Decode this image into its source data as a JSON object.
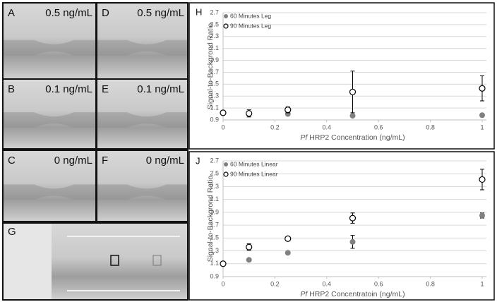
{
  "panels": [
    {
      "letter": "A",
      "caption": "0.5 ng/mL"
    },
    {
      "letter": "D",
      "caption": "0.5 ng/mL"
    },
    {
      "letter": "B",
      "caption": "0.1 ng/mL"
    },
    {
      "letter": "E",
      "caption": "0.1 ng/mL"
    },
    {
      "letter": "C",
      "caption": "0 ng/mL"
    },
    {
      "letter": "F",
      "caption": "0 ng/mL"
    },
    {
      "letter": "G"
    }
  ],
  "chart_data": [
    {
      "type": "scatter",
      "panel": "H",
      "y_label": "Signal-to-Backgrond Ratio",
      "x_label_italic": "Pf",
      "x_label": "HRP2 Concentration (ng/mL)",
      "x": [
        0,
        0.1,
        0.25,
        0.5,
        1
      ],
      "xlim": [
        0,
        1
      ],
      "xticks": [
        0,
        0.2,
        0.4,
        0.6,
        0.8,
        1
      ],
      "ylim": [
        0.9,
        2.7
      ],
      "yticks": [
        0.9,
        1.1,
        1.3,
        1.5,
        1.7,
        1.9,
        2.1,
        2.3,
        2.5,
        2.7
      ],
      "grid": true,
      "legend": "upper left",
      "series": [
        {
          "name": "60 Minutes Leg",
          "color": "#808080",
          "marker": "filled",
          "values": [
            1.02,
            1.0,
            1.0,
            0.97,
            0.98
          ],
          "errors": [
            0.02,
            0.03,
            0.02,
            0.02,
            0.02
          ]
        },
        {
          "name": "90 Minutes Leg",
          "color": "#000000",
          "marker": "open",
          "values": [
            1.02,
            1.01,
            1.07,
            1.37,
            1.43
          ],
          "errors": [
            0.03,
            0.06,
            0.05,
            0.35,
            0.21
          ]
        }
      ]
    },
    {
      "type": "scatter",
      "panel": "J",
      "y_label": "Signal-to-Backgrond Ratio",
      "x_label_italic": "Pf",
      "x_label": "HRP2 Concentratoin (ng/mL)",
      "x": [
        0,
        0.1,
        0.25,
        0.5,
        1
      ],
      "xlim": [
        0,
        1
      ],
      "xticks": [
        0,
        0.2,
        0.4,
        0.6,
        0.8,
        1
      ],
      "ylim": [
        0.9,
        2.7
      ],
      "yticks": [
        0.9,
        1.1,
        1.3,
        1.5,
        1.7,
        1.9,
        2.1,
        2.3,
        2.5,
        2.7
      ],
      "grid": true,
      "legend": "upper left",
      "series": [
        {
          "name": "60 Minutes Linear",
          "color": "#808080",
          "marker": "filled",
          "values": [
            1.1,
            1.16,
            1.27,
            1.44,
            1.85
          ],
          "errors": [
            0.01,
            0.01,
            0.01,
            0.1,
            0.04
          ]
        },
        {
          "name": "90 Minutes Linear",
          "color": "#000000",
          "marker": "open",
          "values": [
            1.1,
            1.36,
            1.49,
            1.81,
            2.41
          ],
          "errors": [
            0.01,
            0.05,
            0.03,
            0.08,
            0.16
          ]
        }
      ]
    }
  ]
}
